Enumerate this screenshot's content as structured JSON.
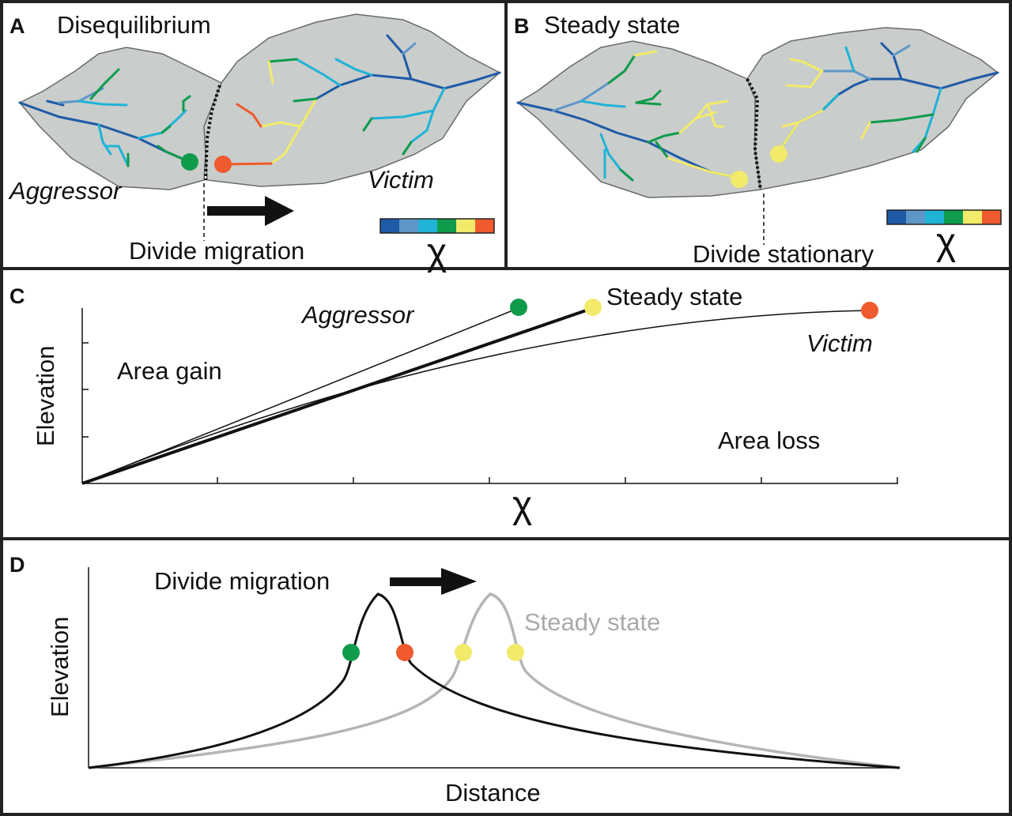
{
  "colors": {
    "chi_scale": [
      "#1f5aa6",
      "#5f96c8",
      "#1fb3d6",
      "#0f9b4b",
      "#f2ea6a",
      "#ef5a2e"
    ],
    "basin_fill": "#c9cdcb",
    "aggressor": "#0f9b4b",
    "victim": "#ef5a2e",
    "steady": "#f2ea6a",
    "steady_profile": "#b5b5b5"
  },
  "panel_a": {
    "letter": "A",
    "title": "Disequilibrium",
    "aggressor": "Aggressor",
    "victim": "Victim",
    "divide_label": "Divide migration",
    "chi_symbol": "χ"
  },
  "panel_b": {
    "letter": "B",
    "title": "Steady state",
    "divide_label": "Divide stationary",
    "chi_symbol": "χ"
  },
  "panel_c": {
    "letter": "C",
    "ylabel": "Elevation",
    "xlabel": "χ",
    "aggressor": "Aggressor",
    "steady": "Steady state",
    "victim": "Victim",
    "area_gain": "Area gain",
    "area_loss": "Area loss"
  },
  "panel_d": {
    "letter": "D",
    "ylabel": "Elevation",
    "xlabel": "Distance",
    "divide_migration": "Divide migration",
    "steady": "Steady state"
  }
}
